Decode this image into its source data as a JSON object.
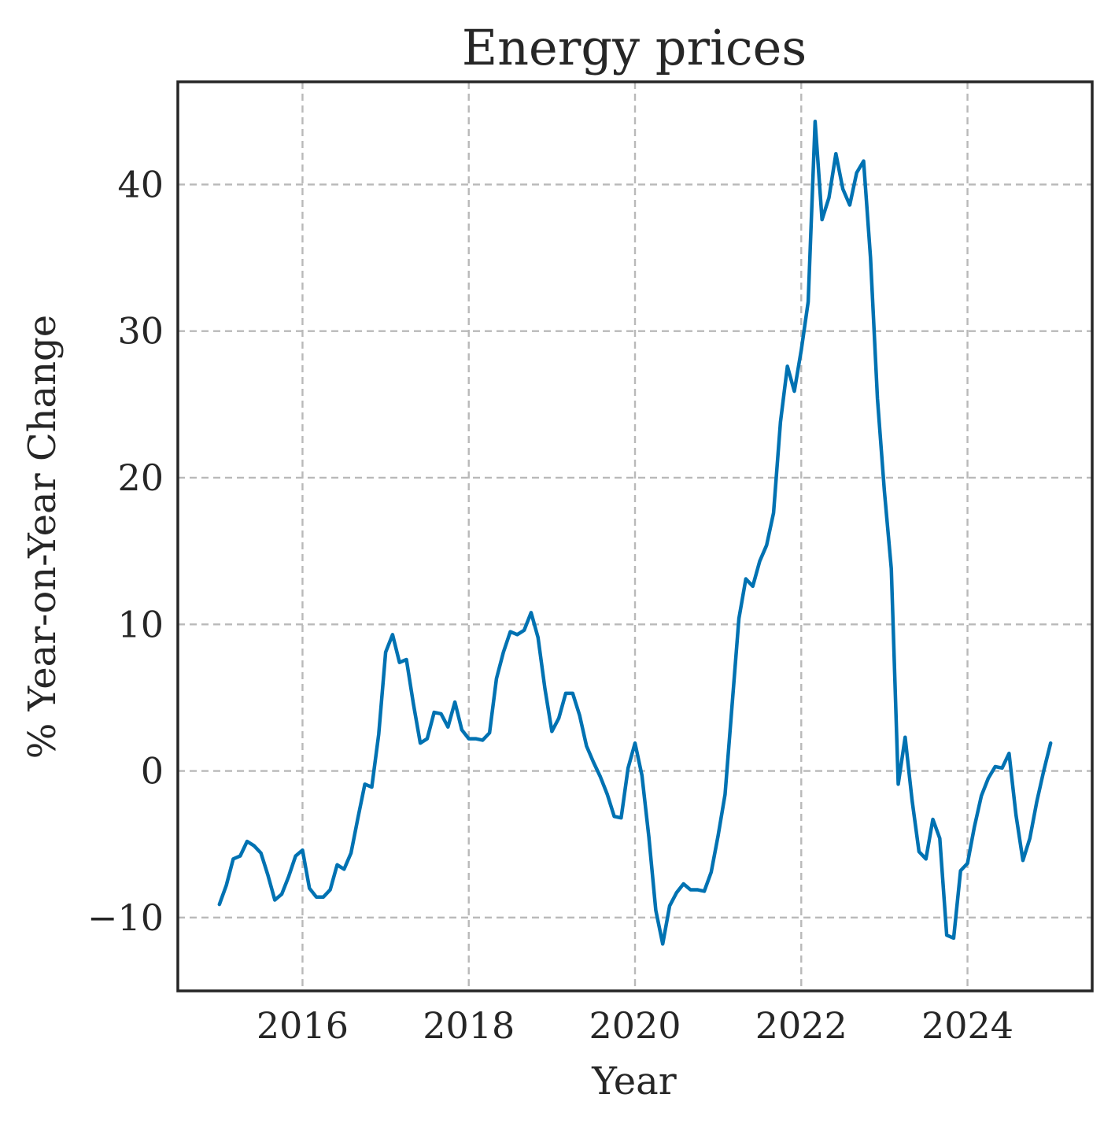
{
  "chart_data": {
    "type": "line",
    "title": "Energy prices",
    "xlabel": "Year",
    "ylabel": "% Year-on-Year Change",
    "xlim": [
      2014.5,
      2025.5
    ],
    "ylim": [
      -15,
      47
    ],
    "x_ticks": [
      2016,
      2018,
      2020,
      2022,
      2024
    ],
    "x_tick_labels": [
      "2016",
      "2018",
      "2020",
      "2022",
      "2024"
    ],
    "y_ticks": [
      -10,
      0,
      10,
      20,
      30,
      40
    ],
    "y_tick_labels": [
      "−10",
      "0",
      "10",
      "20",
      "30",
      "40"
    ],
    "grid": true,
    "legend": "none",
    "series": [
      {
        "color": "#0072b2",
        "x_start": "2015-01",
        "x_step": "1 month",
        "values": [
          -9.1,
          -7.8,
          -6.0,
          -5.8,
          -4.8,
          -5.1,
          -5.6,
          -7.1,
          -8.8,
          -8.4,
          -7.2,
          -5.8,
          -5.4,
          -8.0,
          -8.6,
          -8.6,
          -8.1,
          -6.4,
          -6.7,
          -5.6,
          -3.2,
          -0.9,
          -1.1,
          2.5,
          8.1,
          9.3,
          7.4,
          7.6,
          4.6,
          1.9,
          2.2,
          4.0,
          3.9,
          3.0,
          4.7,
          2.8,
          2.2,
          2.2,
          2.1,
          2.6,
          6.3,
          8.1,
          9.5,
          9.3,
          9.6,
          10.8,
          9.1,
          5.6,
          2.7,
          3.6,
          5.3,
          5.3,
          3.8,
          1.7,
          0.6,
          -0.4,
          -1.6,
          -3.1,
          -3.2,
          0.2,
          1.9,
          -0.3,
          -4.5,
          -9.5,
          -11.8,
          -9.2,
          -8.3,
          -7.7,
          -8.1,
          -8.1,
          -8.2,
          -6.9,
          -4.4,
          -1.6,
          4.4,
          10.4,
          13.1,
          12.6,
          14.3,
          15.4,
          17.6,
          23.8,
          27.6,
          25.9,
          28.7,
          32.0,
          44.3,
          37.6,
          39.1,
          42.1,
          39.7,
          38.6,
          40.8,
          41.6,
          35.0,
          25.4,
          19.1,
          13.8,
          -0.9,
          2.3,
          -2.0,
          -5.5,
          -6.0,
          -3.3,
          -4.6,
          -11.2,
          -11.4,
          -6.8,
          -6.3,
          -3.8,
          -1.7,
          -0.5,
          0.3,
          0.2,
          1.2,
          -3.0,
          -6.1,
          -4.6,
          -2.1,
          0.0,
          1.9
        ]
      }
    ]
  }
}
